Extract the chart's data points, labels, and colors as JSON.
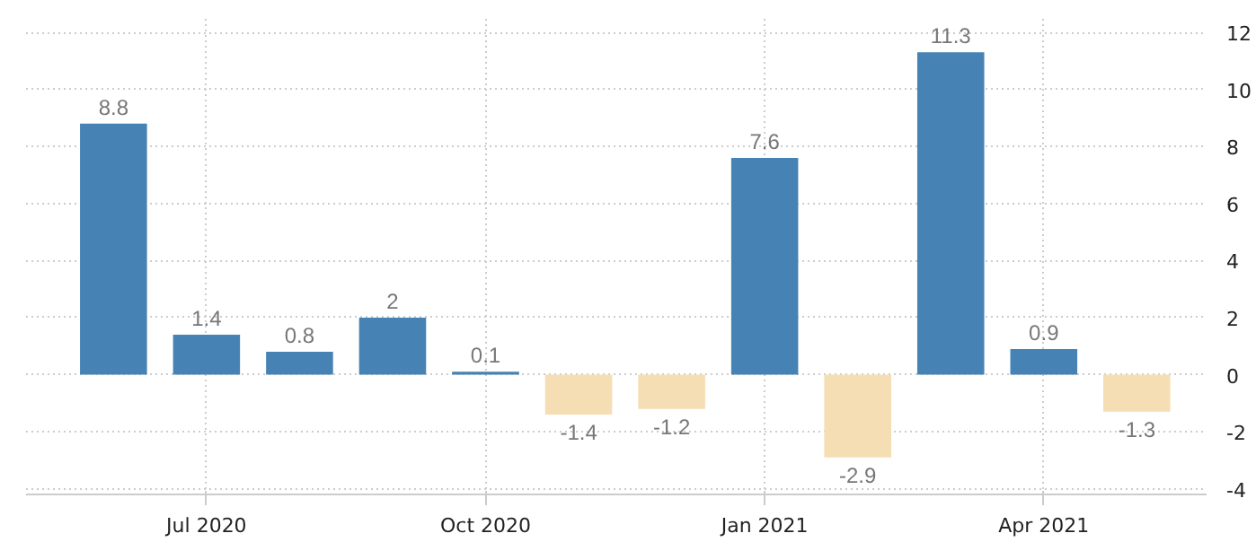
{
  "chart_data": {
    "type": "bar",
    "categories": [
      null,
      "Jul 2020",
      null,
      null,
      "Oct 2020",
      null,
      null,
      "Jan 2021",
      null,
      null,
      "Apr 2021",
      null
    ],
    "values": [
      8.8,
      1.4,
      0.8,
      2,
      0.1,
      -1.4,
      -1.2,
      7.6,
      -2.9,
      11.3,
      0.9,
      -1.3
    ],
    "colors": [
      "#4682b4",
      "#4682b4",
      "#4682b4",
      "#4682b4",
      "#4682b4",
      "#f5deb3",
      "#f5deb3",
      "#4682b4",
      "#f5deb3",
      "#4682b4",
      "#4682b4",
      "#f5deb3"
    ],
    "ylim": [
      -4.2,
      12.6
    ],
    "yticks": [
      -4,
      -2,
      0,
      2,
      4,
      6,
      8,
      10,
      12
    ],
    "grid": true,
    "data_labels": true
  }
}
